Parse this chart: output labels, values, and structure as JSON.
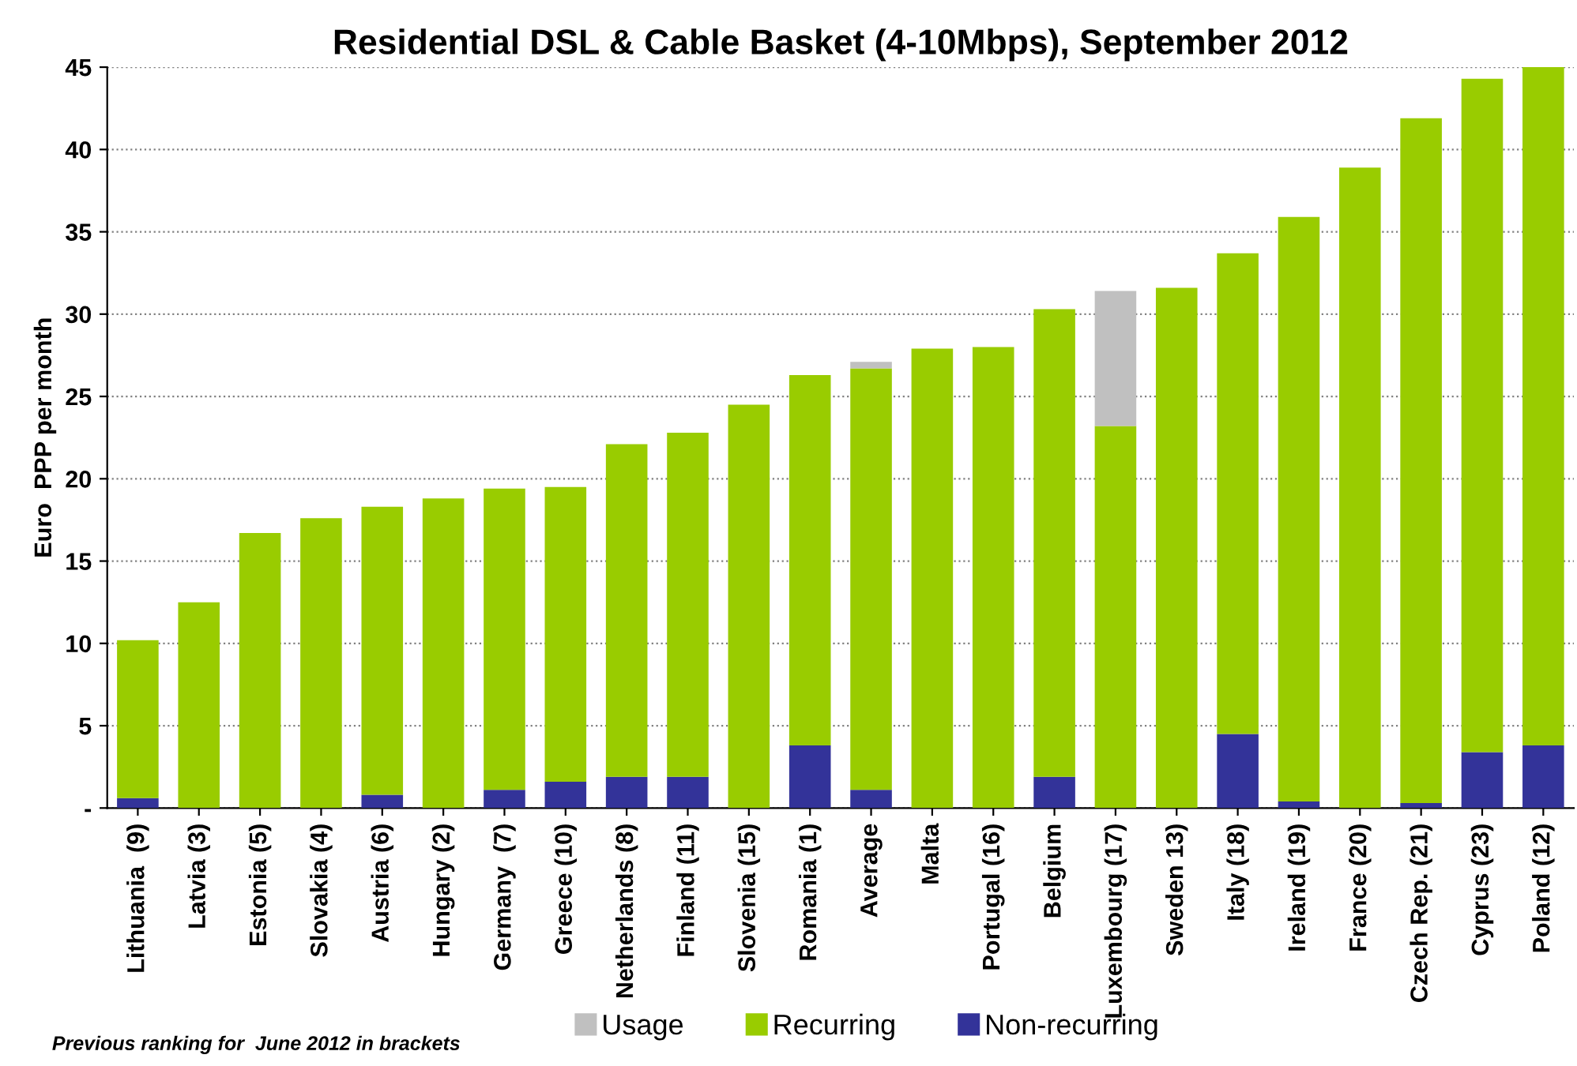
{
  "chart_data": {
    "type": "bar",
    "title": "Residential DSL & Cable Basket (4-10Mbps), September 2012",
    "ylabel": "Euro  PPP per month",
    "stacked": true,
    "categories": [
      "Lithuania  (9)",
      "Latvia (3)",
      "Estonia (5)",
      "Slovakia (4)",
      "Austria (6)",
      "Hungary (2)",
      "Germany  (7)",
      "Greece (10)",
      "Netherlands (8)",
      "Finland (11)",
      "Slovenia (15)",
      "Romania (1)",
      "Average",
      "Malta",
      "Portugal (16)",
      "Belgium",
      "Luxembourg (17)",
      "Sweden 13)",
      "Italy (18)",
      "Ireland (19)",
      "France (20)",
      "Czech Rep. (21)",
      "Cyprus (23)",
      "Poland (12)"
    ],
    "series": [
      {
        "name": "Non-recurring",
        "color": "#333399",
        "values": [
          0.6,
          0,
          0,
          0,
          0.8,
          0,
          1.1,
          1.6,
          1.9,
          1.9,
          0,
          3.8,
          1.1,
          0,
          0,
          1.9,
          0,
          0,
          4.5,
          0.4,
          0,
          0.3,
          3.4,
          3.8
        ]
      },
      {
        "name": "Recurring",
        "color": "#99cc00",
        "values": [
          9.6,
          12.5,
          16.7,
          17.6,
          17.5,
          18.8,
          18.3,
          17.9,
          20.2,
          20.9,
          24.5,
          22.5,
          25.6,
          27.9,
          28.0,
          28.4,
          23.2,
          31.6,
          29.2,
          35.5,
          38.9,
          41.6,
          40.9,
          41.2
        ]
      },
      {
        "name": "Usage",
        "color": "#c0c0c0",
        "values": [
          0,
          0,
          0,
          0,
          0,
          0,
          0,
          0,
          0,
          0,
          0,
          0,
          0.4,
          0,
          0,
          0,
          8.2,
          0,
          0,
          0,
          0,
          0,
          0,
          0
        ]
      }
    ],
    "ylim": [
      0,
      45
    ],
    "yticks": [
      {
        "value": 0,
        "label": "-"
      },
      5,
      10,
      15,
      20,
      25,
      30,
      35,
      40,
      45
    ],
    "grid": "y",
    "legend": "bottom",
    "annotations": [
      "Previous ranking for  June 2012 in brackets"
    ]
  }
}
